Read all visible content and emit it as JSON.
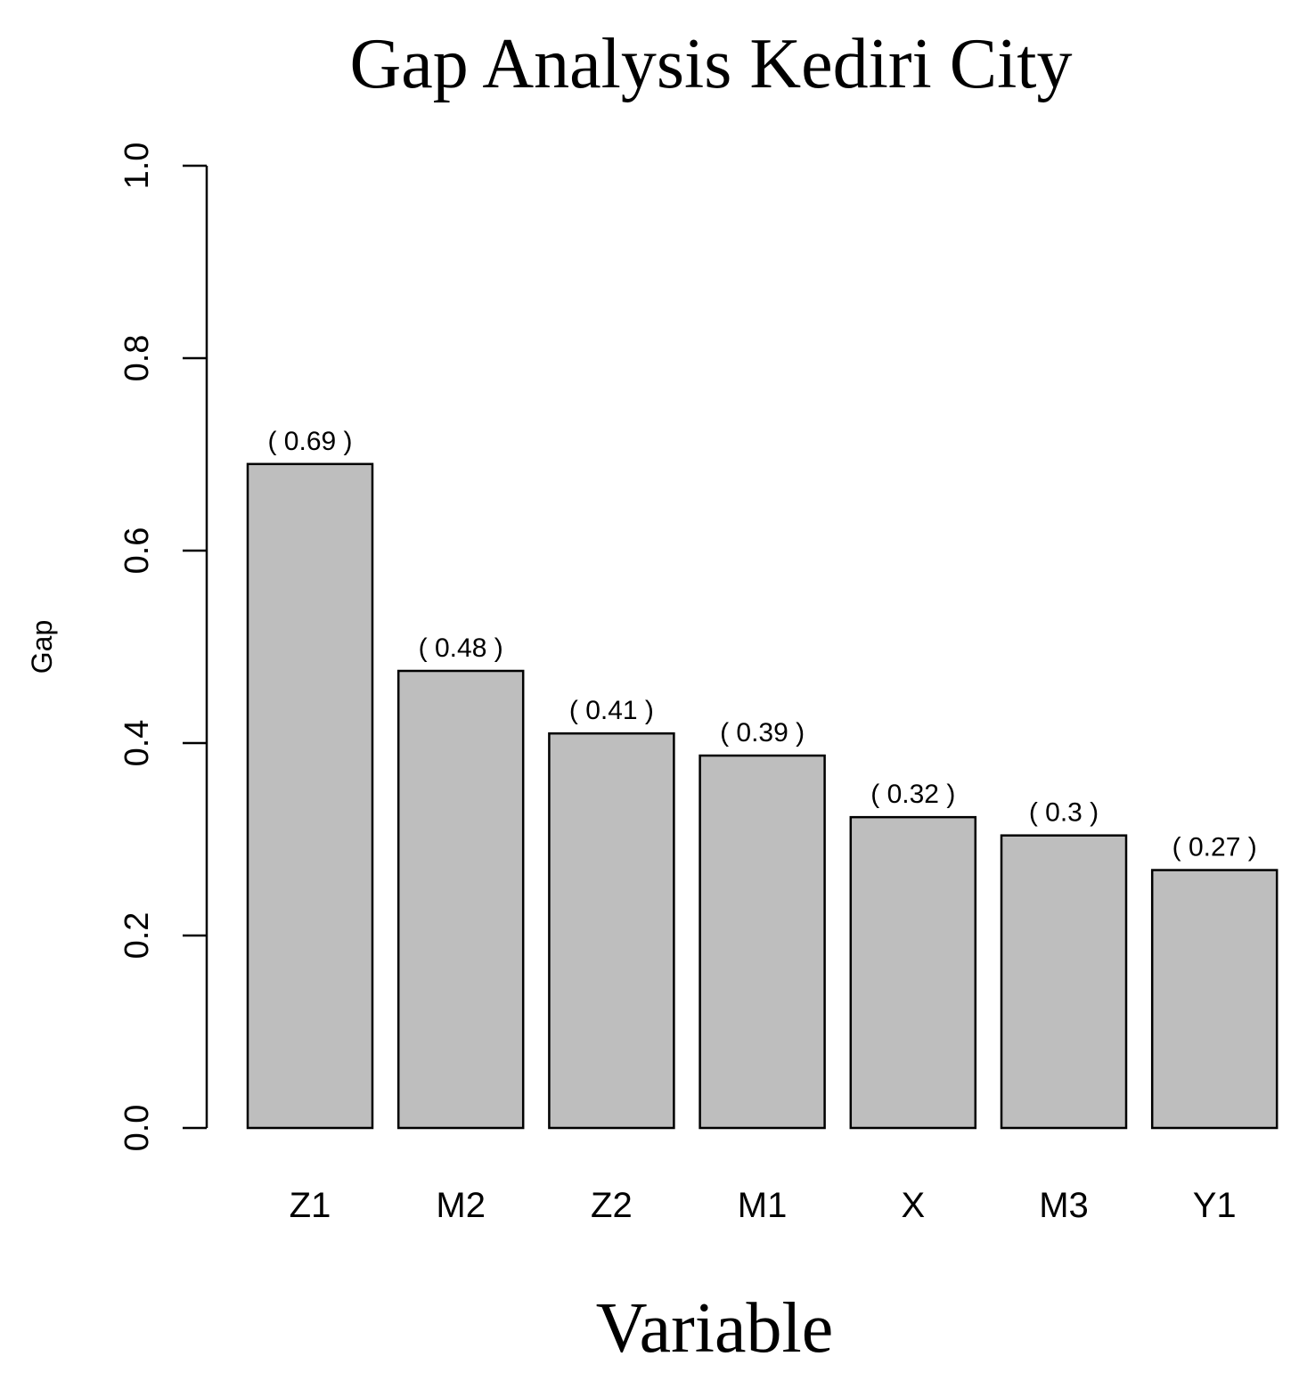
{
  "chart_data": {
    "type": "bar",
    "title": "Gap Analysis Kediri City",
    "xlabel": "Variable",
    "ylabel": "Gap",
    "categories": [
      "Z1",
      "M2",
      "Z2",
      "M1",
      "X",
      "M3",
      "Y1"
    ],
    "values": [
      0.69,
      0.475,
      0.41,
      0.387,
      0.323,
      0.304,
      0.268
    ],
    "value_labels": [
      "( 0.69 )",
      "( 0.48 )",
      "( 0.41 )",
      "( 0.39 )",
      "( 0.32 )",
      "( 0.3 )",
      "( 0.27 )"
    ],
    "ylim": [
      0,
      1
    ],
    "yticks": [
      "0.0",
      "0.2",
      "0.4",
      "0.6",
      "0.8",
      "1.0"
    ],
    "grid": false,
    "legend": "none",
    "bar_color": "#bebebe",
    "edge_color": "#000000"
  }
}
